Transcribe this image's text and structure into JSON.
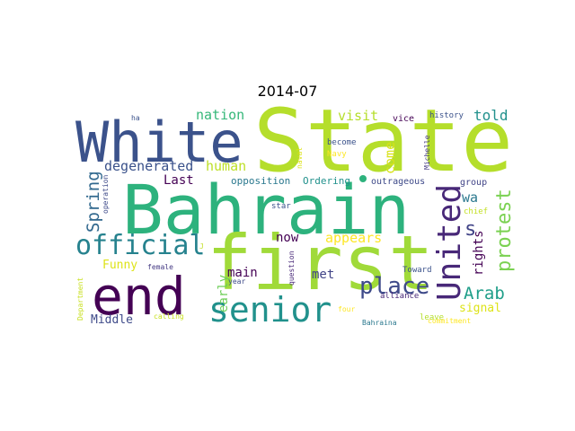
{
  "chart_data": {
    "type": "wordcloud",
    "title": "2014-07",
    "words": [
      {
        "text": "State",
        "color": "#b5de2b",
        "weight": 1.0
      },
      {
        "text": "Bahrain",
        "color": "#2db27d",
        "weight": 0.95
      },
      {
        "text": "White",
        "color": "#3b528b",
        "weight": 0.7
      },
      {
        "text": "first",
        "color": "#a0da39",
        "weight": 0.85
      },
      {
        "text": "end",
        "color": "#440154",
        "weight": 0.7
      },
      {
        "text": "senior",
        "color": "#21918c",
        "weight": 0.45
      },
      {
        "text": "United",
        "color": "#482878",
        "weight": 0.45
      },
      {
        "text": "official",
        "color": "#26828e",
        "weight": 0.35
      },
      {
        "text": "place",
        "color": "#3e4a89",
        "weight": 0.3
      },
      {
        "text": "protest",
        "color": "#7ad151",
        "weight": 0.28
      },
      {
        "text": "Spring",
        "color": "#31688e",
        "weight": 0.22
      },
      {
        "text": "Arab",
        "color": "#1f9e89",
        "weight": 0.22
      },
      {
        "text": "degenerated",
        "color": "#3b528b",
        "weight": 0.18
      },
      {
        "text": "human",
        "color": "#bddf26",
        "weight": 0.18
      },
      {
        "text": "nation",
        "color": "#35b779",
        "weight": 0.18
      },
      {
        "text": "visit",
        "color": "#b5de2b",
        "weight": 0.18
      },
      {
        "text": "told",
        "color": "#21918c",
        "weight": 0.18
      },
      {
        "text": "come",
        "color": "#d8e219",
        "weight": 0.18
      },
      {
        "text": "s",
        "color": "#414487",
        "weight": 0.18
      },
      {
        "text": "rights",
        "color": "#440154",
        "weight": 0.16
      },
      {
        "text": "wa",
        "color": "#2a788e",
        "weight": 0.16
      },
      {
        "text": "now",
        "color": "#440154",
        "weight": 0.14
      },
      {
        "text": "appears",
        "color": "#fde725",
        "weight": 0.16
      },
      {
        "text": "Last",
        "color": "#440154",
        "weight": 0.15
      },
      {
        "text": "Funny",
        "color": "#dde318",
        "weight": 0.14
      },
      {
        "text": "main",
        "color": "#440154",
        "weight": 0.14
      },
      {
        "text": "met",
        "color": "#414487",
        "weight": 0.14
      },
      {
        "text": "early",
        "color": "#6ece58",
        "weight": 0.14
      },
      {
        "text": "Middle",
        "color": "#3e4a89",
        "weight": 0.14
      },
      {
        "text": "signal",
        "color": "#dde318",
        "weight": 0.14
      },
      {
        "text": "opposition",
        "color": "#2a788e",
        "weight": 0.1
      },
      {
        "text": "Ordering",
        "color": "#21918c",
        "weight": 0.1
      },
      {
        "text": "outrageous",
        "color": "#3e4a89",
        "weight": 0.09
      },
      {
        "text": "group",
        "color": "#414487",
        "weight": 0.09
      },
      {
        "text": "chief",
        "color": "#c2df23",
        "weight": 0.08
      },
      {
        "text": "history",
        "color": "#3b528b",
        "weight": 0.08
      },
      {
        "text": "vice",
        "color": "#440154",
        "weight": 0.08
      },
      {
        "text": "become",
        "color": "#3b528b",
        "weight": 0.08
      },
      {
        "text": "Navy",
        "color": "#fde725",
        "weight": 0.08
      },
      {
        "text": "naval",
        "color": "#dde318",
        "weight": 0.07
      },
      {
        "text": "Michelle",
        "color": "#443983",
        "weight": 0.07
      },
      {
        "text": "operation",
        "color": "#3e4a89",
        "weight": 0.07
      },
      {
        "text": "ha",
        "color": "#3b528b",
        "weight": 0.07
      },
      {
        "text": "star",
        "color": "#3b528b",
        "weight": 0.07
      },
      {
        "text": "J",
        "color": "#c2df23",
        "weight": 0.06
      },
      {
        "text": "question",
        "color": "#482878",
        "weight": 0.07
      },
      {
        "text": "female",
        "color": "#443983",
        "weight": 0.07
      },
      {
        "text": "Department",
        "color": "#c8e020",
        "weight": 0.07
      },
      {
        "text": "year",
        "color": "#3e4a89",
        "weight": 0.07
      },
      {
        "text": "Toward",
        "color": "#3b528b",
        "weight": 0.07
      },
      {
        "text": "alliance",
        "color": "#482878",
        "weight": 0.08
      },
      {
        "text": "four",
        "color": "#fde725",
        "weight": 0.07
      },
      {
        "text": "calling",
        "color": "#c8e020",
        "weight": 0.07
      },
      {
        "text": "leave",
        "color": "#b5de2b",
        "weight": 0.07
      },
      {
        "text": "Bahraina",
        "color": "#2a788e",
        "weight": 0.07
      },
      {
        "text": "commitment",
        "color": "#fde725",
        "weight": 0.07
      }
    ]
  }
}
